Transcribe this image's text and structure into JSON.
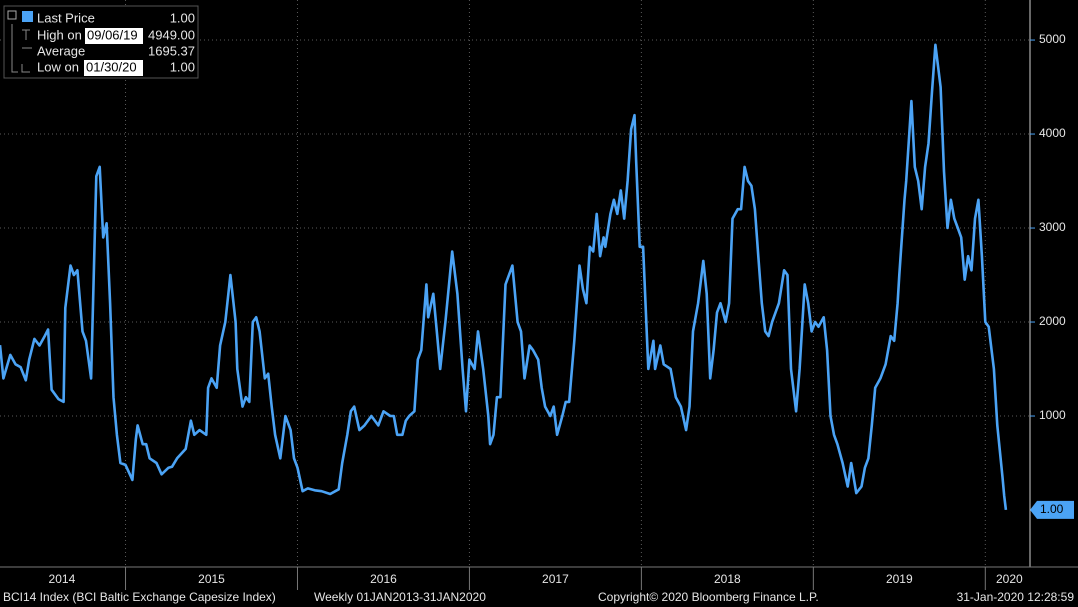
{
  "chart_data": {
    "type": "line",
    "footer_left": "BCI14 Index (BCI Baltic Exchange Capesize Index)",
    "footer_period": "Weekly 01JAN2013-31JAN2020",
    "copyright": "Copyright© 2020 Bloomberg Finance L.P.",
    "timestamp": "31-Jan-2020 12:28:59",
    "stats": [
      {
        "label": "High on",
        "date": "09/06/19",
        "value": "4949.00"
      },
      {
        "label": "Average",
        "value": "1695.37"
      },
      {
        "label": "Low on",
        "date": "01/30/20",
        "value": "1.00"
      }
    ],
    "last_value_label": "1.00",
    "xlim": [
      2014.27,
      2020.26
    ],
    "xticks": [
      {
        "value": 2014.63,
        "label": "2014"
      },
      {
        "value": 2015.5,
        "label": "2015"
      },
      {
        "value": 2016.5,
        "label": "2016"
      },
      {
        "value": 2017.5,
        "label": "2017"
      },
      {
        "value": 2018.5,
        "label": "2018"
      },
      {
        "value": 2019.5,
        "label": "2019"
      },
      {
        "value": 2020.14,
        "label": "2020"
      }
    ],
    "xgrid": [
      2015,
      2016,
      2017,
      2018,
      2019,
      2020
    ],
    "ylim": [
      -585,
      5426
    ],
    "yticks": [
      1000,
      2000,
      3000,
      4000,
      5000
    ],
    "grid": true,
    "x": [
      2014.27,
      2014.29,
      2014.33,
      2014.36,
      2014.39,
      2014.42,
      2014.44,
      2014.47,
      2014.5,
      2014.53,
      2014.55,
      2014.57,
      2014.61,
      2014.64,
      2014.65,
      2014.68,
      2014.7,
      2014.72,
      2014.75,
      2014.77,
      2014.8,
      2014.83,
      2014.85,
      2014.87,
      2014.89,
      2014.91,
      2014.93,
      2014.95,
      2014.97,
      2015.0,
      2015.04,
      2015.06,
      2015.07,
      2015.1,
      2015.12,
      2015.14,
      2015.18,
      2015.21,
      2015.25,
      2015.27,
      2015.3,
      2015.35,
      2015.38,
      2015.4,
      2015.43,
      2015.47,
      2015.48,
      2015.5,
      2015.53,
      2015.55,
      2015.58,
      2015.61,
      2015.64,
      2015.65,
      2015.68,
      2015.7,
      2015.72,
      2015.74,
      2015.76,
      2015.78,
      2015.81,
      2015.83,
      2015.85,
      2015.87,
      2015.9,
      2015.93,
      2015.96,
      2015.98,
      2016.0,
      2016.03,
      2016.06,
      2016.1,
      2016.14,
      2016.19,
      2016.24,
      2016.26,
      2016.29,
      2016.31,
      2016.33,
      2016.36,
      2016.39,
      2016.43,
      2016.47,
      2016.5,
      2016.54,
      2016.56,
      2016.58,
      2016.61,
      2016.63,
      2016.65,
      2016.68,
      2016.7,
      2016.72,
      2016.75,
      2016.76,
      2016.79,
      2016.81,
      2016.83,
      2016.86,
      2016.9,
      2016.93,
      2016.96,
      2016.98,
      2017.0,
      2017.03,
      2017.05,
      2017.08,
      2017.11,
      2017.12,
      2017.14,
      2017.16,
      2017.18,
      2017.21,
      2017.24,
      2017.25,
      2017.28,
      2017.3,
      2017.32,
      2017.35,
      2017.37,
      2017.4,
      2017.42,
      2017.44,
      2017.47,
      2017.49,
      2017.51,
      2017.54,
      2017.56,
      2017.58,
      2017.61,
      2017.64,
      2017.66,
      2017.68,
      2017.7,
      2017.72,
      2017.74,
      2017.76,
      2017.78,
      2017.79,
      2017.82,
      2017.84,
      2017.86,
      2017.88,
      2017.9,
      2017.92,
      2017.94,
      2017.96,
      2017.97,
      2017.99,
      2018.01,
      2018.04,
      2018.07,
      2018.08,
      2018.11,
      2018.13,
      2018.17,
      2018.2,
      2018.23,
      2018.26,
      2018.28,
      2018.3,
      2018.33,
      2018.36,
      2018.38,
      2018.4,
      2018.42,
      2018.44,
      2018.46,
      2018.49,
      2018.51,
      2018.53,
      2018.56,
      2018.58,
      2018.6,
      2018.62,
      2018.64,
      2018.66,
      2018.68,
      2018.7,
      2018.72,
      2018.74,
      2018.76,
      2018.78,
      2018.8,
      2018.83,
      2018.85,
      2018.87,
      2018.9,
      2018.92,
      2018.95,
      2018.97,
      2018.99,
      2019.01,
      2019.03,
      2019.06,
      2019.08,
      2019.1,
      2019.12,
      2019.14,
      2019.17,
      2019.2,
      2019.22,
      2019.25,
      2019.28,
      2019.3,
      2019.32,
      2019.34,
      2019.36,
      2019.39,
      2019.42,
      2019.45,
      2019.47,
      2019.49,
      2019.5,
      2019.53,
      2019.54,
      2019.57,
      2019.59,
      2019.61,
      2019.63,
      2019.65,
      2019.67,
      2019.69,
      2019.71,
      2019.74,
      2019.76,
      2019.78,
      2019.8,
      2019.82,
      2019.84,
      2019.86,
      2019.88,
      2019.9,
      2019.92,
      2019.94,
      2019.96,
      2019.98,
      2020.0,
      2020.02,
      2020.05,
      2020.07,
      2020.1,
      2020.11,
      2020.12
    ],
    "series": [
      {
        "name": "Last Price",
        "color": "#4ba3f5",
        "values": [
          1755,
          1400,
          1650,
          1550,
          1520,
          1380,
          1600,
          1820,
          1750,
          1850,
          1920,
          1280,
          1180,
          1150,
          2150,
          2600,
          2500,
          2550,
          1900,
          1800,
          1400,
          3550,
          3650,
          2900,
          3050,
          2200,
          1200,
          800,
          500,
          480,
          320,
          750,
          900,
          700,
          700,
          550,
          500,
          380,
          450,
          460,
          550,
          650,
          950,
          800,
          850,
          800,
          1300,
          1400,
          1300,
          1750,
          2000,
          2500,
          2000,
          1500,
          1100,
          1200,
          1150,
          2000,
          2050,
          1900,
          1400,
          1450,
          1100,
          800,
          550,
          1000,
          850,
          550,
          450,
          200,
          230,
          210,
          200,
          170,
          220,
          500,
          800,
          1050,
          1100,
          850,
          900,
          1000,
          900,
          1050,
          1000,
          1000,
          800,
          800,
          950,
          1000,
          1050,
          1600,
          1700,
          2400,
          2050,
          2300,
          1900,
          1500,
          2000,
          2750,
          2300,
          1500,
          1050,
          1600,
          1500,
          1900,
          1500,
          1000,
          700,
          800,
          1200,
          1200,
          2400,
          2550,
          2600,
          2000,
          1900,
          1400,
          1750,
          1700,
          1600,
          1300,
          1100,
          1000,
          1100,
          800,
          1000,
          1150,
          1150,
          1800,
          2600,
          2350,
          2200,
          2800,
          2750,
          3150,
          2700,
          2900,
          2800,
          3150,
          3300,
          3150,
          3400,
          3100,
          3500,
          4050,
          4200,
          3700,
          2800,
          2800,
          1500,
          1800,
          1500,
          1750,
          1550,
          1500,
          1200,
          1100,
          850,
          1100,
          1900,
          2200,
          2650,
          2300,
          1400,
          1700,
          2100,
          2200,
          2000,
          2200,
          3100,
          3200,
          3200,
          3650,
          3500,
          3450,
          3200,
          2700,
          2200,
          1900,
          1850,
          2000,
          2100,
          2200,
          2550,
          2500,
          1500,
          1050,
          1500,
          2400,
          2200,
          1900,
          2000,
          1950,
          2050,
          1700,
          1000,
          800,
          700,
          500,
          250,
          500,
          180,
          250,
          450,
          550,
          900,
          1300,
          1400,
          1550,
          1850,
          1800,
          2200,
          2500,
          3300,
          3500,
          4350,
          3650,
          3500,
          3200,
          3650,
          3900,
          4450,
          4949,
          4500,
          3600,
          3000,
          3300,
          3100,
          3000,
          2900,
          2450,
          2700,
          2550,
          3100,
          3300,
          2700,
          2000,
          1950,
          1500,
          900,
          350,
          150,
          1
        ]
      }
    ]
  }
}
